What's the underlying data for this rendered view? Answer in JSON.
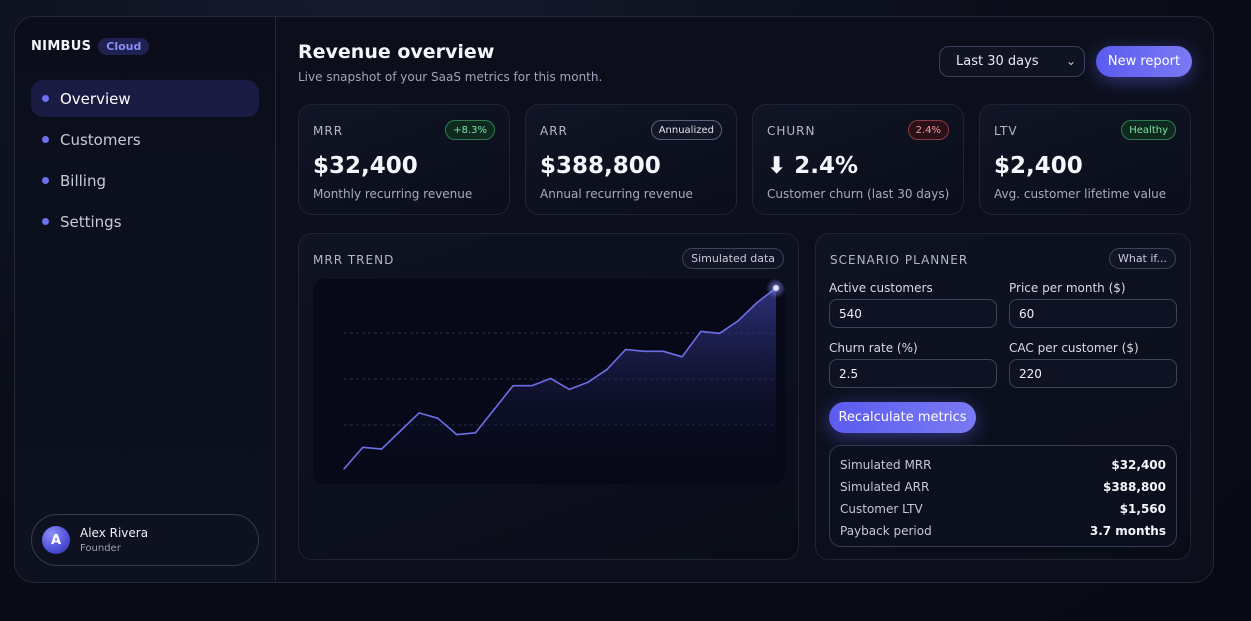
{
  "brand": {
    "name": "NIMBUS",
    "tag": "Cloud"
  },
  "sidebar": {
    "items": [
      {
        "label": "Overview",
        "active": true
      },
      {
        "label": "Customers",
        "active": false
      },
      {
        "label": "Billing",
        "active": false
      },
      {
        "label": "Settings",
        "active": false
      }
    ],
    "user": {
      "initial": "A",
      "name": "Alex Rivera",
      "role": "Founder"
    }
  },
  "header": {
    "title": "Revenue overview",
    "subtitle": "Live snapshot of your SaaS metrics for this month.",
    "range_select": "Last 30 days",
    "new_report_label": "New report"
  },
  "kpis": [
    {
      "label": "MRR",
      "badge": "+8.3%",
      "badge_tone": "green",
      "value": "$32,400",
      "caption": "Monthly recurring revenue"
    },
    {
      "label": "ARR",
      "badge": "Annualized",
      "badge_tone": "neutral",
      "value": "$388,800",
      "caption": "Annual recurring revenue"
    },
    {
      "label": "CHURN",
      "badge": "2.4%",
      "badge_tone": "red",
      "value": "⬇ 2.4%",
      "caption": "Customer churn (last 30 days)"
    },
    {
      "label": "LTV",
      "badge": "Healthy",
      "badge_tone": "green",
      "value": "$2,400",
      "caption": "Avg. customer lifetime value"
    }
  ],
  "trend": {
    "title": "MRR TREND",
    "chip": "Simulated data"
  },
  "chart_data": {
    "type": "area",
    "title": "MRR TREND",
    "x": [
      1,
      2,
      3,
      4,
      5,
      6,
      7,
      8,
      9,
      10,
      11,
      12,
      13,
      14,
      15,
      16,
      17,
      18,
      19,
      20,
      21,
      22,
      23,
      24
    ],
    "values": [
      0,
      0.12,
      0.11,
      0.21,
      0.31,
      0.28,
      0.19,
      0.2,
      0.33,
      0.46,
      0.46,
      0.5,
      0.44,
      0.48,
      0.55,
      0.66,
      0.65,
      0.65,
      0.62,
      0.76,
      0.75,
      0.82,
      0.92,
      1
    ],
    "grid": true,
    "colors": {
      "line": "#6c6fe8",
      "fill_top": "#3b3d9a",
      "endpoint": "#dfe1ff"
    }
  },
  "planner": {
    "title": "SCENARIO PLANNER",
    "chip": "What if...",
    "fields": {
      "customers": {
        "label": "Active customers",
        "value": "540"
      },
      "price": {
        "label": "Price per month ($)",
        "value": "60"
      },
      "churn": {
        "label": "Churn rate (%)",
        "value": "2.5"
      },
      "cac": {
        "label": "CAC per customer ($)",
        "value": "220"
      }
    },
    "recalc_label": "Recalculate metrics",
    "results": [
      {
        "label": "Simulated MRR",
        "value": "$32,400"
      },
      {
        "label": "Simulated ARR",
        "value": "$388,800"
      },
      {
        "label": "Customer LTV",
        "value": "$1,560"
      },
      {
        "label": "Payback period",
        "value": "3.7 months"
      }
    ]
  },
  "colors": {
    "accent": "#6366f1",
    "green": "#7be3a8",
    "red": "#f39a9a"
  }
}
